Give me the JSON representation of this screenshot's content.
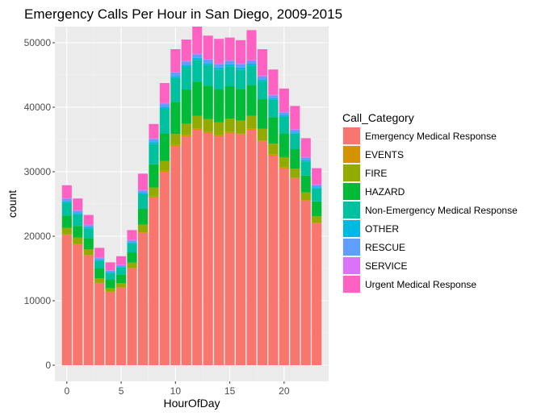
{
  "chart_data": {
    "type": "bar",
    "stacked": true,
    "title": "Emergency Calls Per Hour in San Diego, 2009-2015",
    "xlabel": "HourOfDay",
    "ylabel": "count",
    "xlim": [
      -1.1,
      24.1
    ],
    "ylim": [
      -2500,
      52500
    ],
    "x_ticks": [
      0,
      5,
      10,
      15,
      20
    ],
    "y_ticks": [
      0,
      10000,
      20000,
      30000,
      40000,
      50000
    ],
    "y_tick_labels": [
      "0",
      "10000",
      "20000",
      "30000",
      "40000",
      "50000"
    ],
    "grid": true,
    "legend_position": "right",
    "legend_title": "Call_Category",
    "x": [
      0,
      1,
      2,
      3,
      4,
      5,
      6,
      7,
      8,
      9,
      10,
      11,
      12,
      13,
      14,
      15,
      16,
      17,
      18,
      19,
      20,
      21,
      22,
      23
    ],
    "series": [
      {
        "name": "Emergency Medical Response",
        "color": "#F8766D",
        "values": [
          20200,
          18700,
          17000,
          12700,
          11300,
          12000,
          15000,
          20500,
          26000,
          30000,
          34000,
          35500,
          36500,
          36000,
          35500,
          36000,
          35800,
          36500,
          34700,
          32500,
          30500,
          29000,
          25500,
          22000
        ]
      },
      {
        "name": "EVENTS",
        "color": "#D39200",
        "values": [
          100,
          100,
          100,
          100,
          100,
          100,
          100,
          100,
          150,
          150,
          150,
          150,
          150,
          150,
          150,
          150,
          150,
          150,
          150,
          150,
          150,
          100,
          100,
          100
        ]
      },
      {
        "name": "FIRE",
        "color": "#93AA00",
        "values": [
          1000,
          1000,
          900,
          700,
          600,
          650,
          800,
          1200,
          1400,
          1500,
          1700,
          1800,
          2000,
          2000,
          2000,
          2100,
          2000,
          2000,
          1800,
          1700,
          1600,
          1400,
          1200,
          1000
        ]
      },
      {
        "name": "HAZARD",
        "color": "#00BA38",
        "values": [
          1900,
          1800,
          1700,
          1500,
          1300,
          1300,
          1600,
          2500,
          3600,
          4300,
          5000,
          5300,
          5300,
          5200,
          5100,
          5000,
          4900,
          4800,
          4600,
          4100,
          3700,
          3000,
          2600,
          2300
        ]
      },
      {
        "name": "Non-Emergency Medical Response",
        "color": "#00C19F",
        "values": [
          2000,
          1800,
          1500,
          1200,
          1000,
          1100,
          1400,
          2200,
          3200,
          3800,
          3700,
          3500,
          3400,
          3200,
          3100,
          3100,
          3000,
          3000,
          2800,
          2700,
          2600,
          2400,
          2200,
          2000
        ]
      },
      {
        "name": "OTHER",
        "color": "#00B9E3",
        "values": [
          200,
          200,
          200,
          150,
          150,
          150,
          150,
          200,
          250,
          300,
          300,
          300,
          300,
          300,
          300,
          300,
          300,
          300,
          250,
          250,
          250,
          200,
          200,
          200
        ]
      },
      {
        "name": "RESCUE",
        "color": "#619CFF",
        "values": [
          400,
          350,
          300,
          250,
          200,
          200,
          300,
          400,
          500,
          500,
          550,
          550,
          550,
          550,
          550,
          550,
          550,
          500,
          500,
          450,
          400,
          400,
          400,
          350
        ]
      },
      {
        "name": "SERVICE",
        "color": "#DB72FB",
        "values": [
          100,
          100,
          100,
          100,
          100,
          100,
          100,
          100,
          100,
          100,
          100,
          100,
          100,
          100,
          100,
          100,
          100,
          100,
          100,
          100,
          100,
          100,
          100,
          100
        ]
      },
      {
        "name": "Urgent Medical Response",
        "color": "#FF61C3",
        "values": [
          2000,
          1800,
          1500,
          1500,
          1200,
          1300,
          1500,
          2500,
          2200,
          3100,
          3500,
          3300,
          4200,
          3600,
          3800,
          3500,
          3600,
          4600,
          4100,
          3900,
          3600,
          3600,
          2900,
          2500
        ]
      }
    ]
  }
}
